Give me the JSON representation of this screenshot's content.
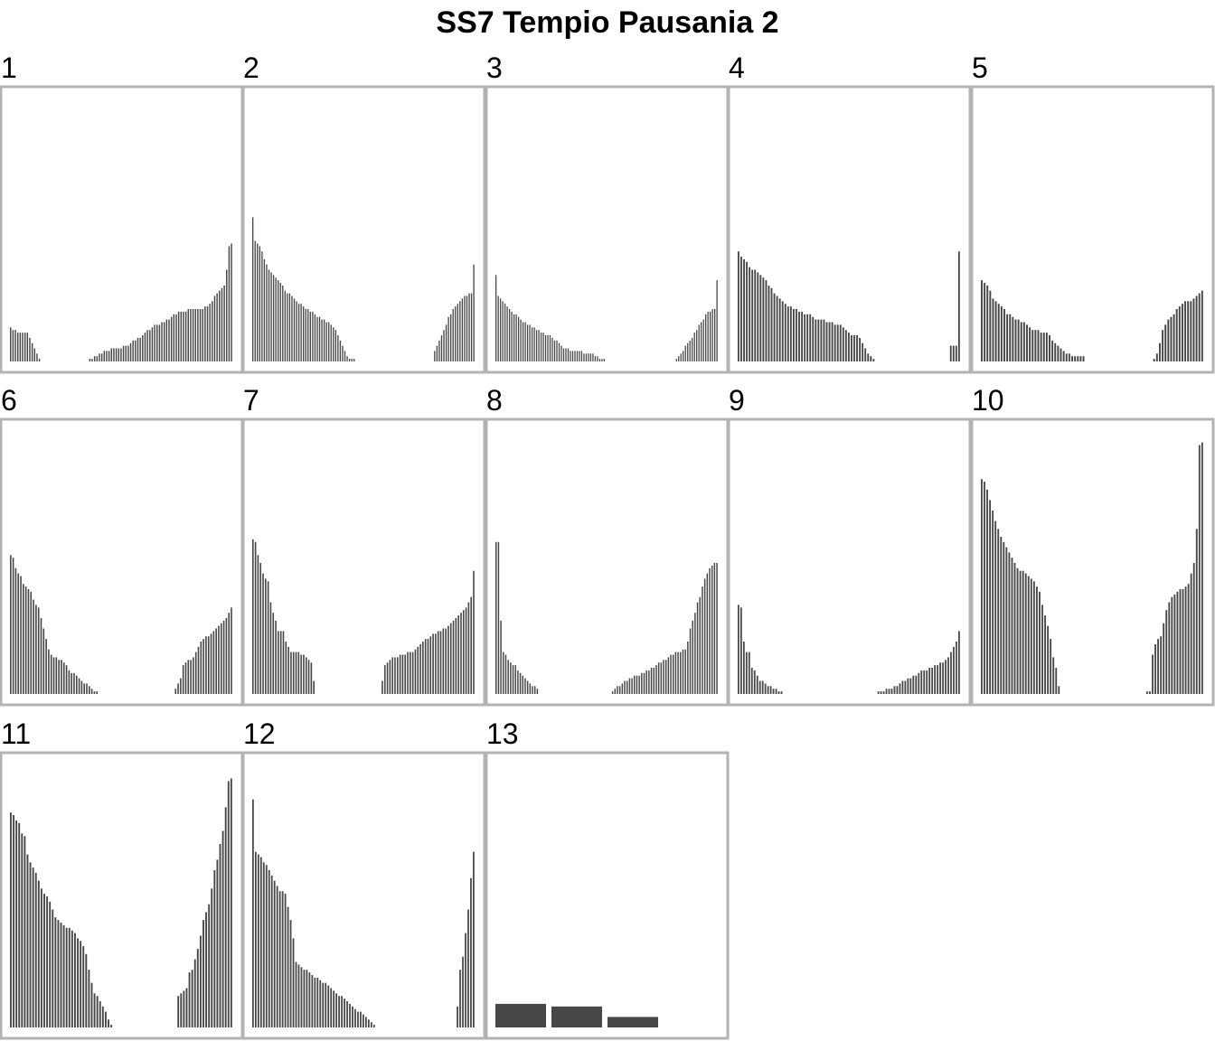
{
  "title": "SS7 Tempio Pausania 2",
  "colors": {
    "bar": "#474747",
    "frame": "#b3b3b3",
    "background": "#ffffff"
  },
  "chart_data": [
    {
      "type": "bar",
      "label": "1",
      "ylim": [
        0,
        1
      ],
      "values": [
        0.13,
        0.12,
        0.12,
        0.11,
        0.11,
        0.11,
        0.11,
        0.11,
        0.09,
        0.07,
        0.05,
        0.03,
        0.01,
        0.0,
        0.0,
        0.0,
        0.0,
        0.0,
        0.0,
        0.0,
        0.0,
        0.0,
        0.0,
        0.0,
        0.0,
        0.0,
        0.0,
        0.0,
        0.0,
        0.0,
        0.0,
        0.0,
        0.0,
        0.01,
        0.01,
        0.02,
        0.02,
        0.03,
        0.03,
        0.04,
        0.04,
        0.04,
        0.05,
        0.05,
        0.05,
        0.05,
        0.05,
        0.06,
        0.06,
        0.06,
        0.07,
        0.08,
        0.08,
        0.09,
        0.09,
        0.1,
        0.11,
        0.12,
        0.12,
        0.13,
        0.14,
        0.14,
        0.14,
        0.15,
        0.15,
        0.16,
        0.16,
        0.17,
        0.18,
        0.18,
        0.19,
        0.19,
        0.19,
        0.19,
        0.2,
        0.2,
        0.2,
        0.2,
        0.2,
        0.2,
        0.2,
        0.21,
        0.21,
        0.22,
        0.23,
        0.25,
        0.26,
        0.27,
        0.28,
        0.29,
        0.35,
        0.44,
        0.45
      ]
    },
    {
      "type": "bar",
      "label": "2",
      "ylim": [
        0,
        1
      ],
      "values": [
        0.55,
        0.46,
        0.45,
        0.44,
        0.42,
        0.39,
        0.37,
        0.35,
        0.34,
        0.33,
        0.32,
        0.31,
        0.3,
        0.29,
        0.27,
        0.26,
        0.26,
        0.25,
        0.24,
        0.23,
        0.22,
        0.22,
        0.21,
        0.2,
        0.2,
        0.19,
        0.19,
        0.18,
        0.17,
        0.17,
        0.16,
        0.16,
        0.15,
        0.15,
        0.14,
        0.13,
        0.12,
        0.1,
        0.08,
        0.06,
        0.04,
        0.02,
        0.01,
        0.01,
        0.01,
        0.0,
        0.0,
        0.0,
        0.0,
        0.0,
        0.0,
        0.0,
        0.0,
        0.0,
        0.0,
        0.0,
        0.0,
        0.0,
        0.0,
        0.0,
        0.0,
        0.0,
        0.0,
        0.0,
        0.0,
        0.0,
        0.0,
        0.0,
        0.0,
        0.0,
        0.0,
        0.0,
        0.0,
        0.0,
        0.0,
        0.0,
        0.0,
        0.0,
        0.0,
        0.04,
        0.06,
        0.08,
        0.1,
        0.12,
        0.14,
        0.17,
        0.18,
        0.2,
        0.21,
        0.22,
        0.23,
        0.24,
        0.25,
        0.25,
        0.26,
        0.26,
        0.37
      ]
    },
    {
      "type": "bar",
      "label": "3",
      "ylim": [
        0,
        1
      ],
      "values": [
        0.33,
        0.25,
        0.24,
        0.23,
        0.22,
        0.21,
        0.2,
        0.19,
        0.18,
        0.18,
        0.17,
        0.16,
        0.15,
        0.15,
        0.14,
        0.14,
        0.13,
        0.13,
        0.12,
        0.12,
        0.11,
        0.11,
        0.1,
        0.1,
        0.1,
        0.09,
        0.08,
        0.08,
        0.07,
        0.06,
        0.05,
        0.05,
        0.05,
        0.04,
        0.04,
        0.04,
        0.04,
        0.04,
        0.04,
        0.03,
        0.03,
        0.03,
        0.03,
        0.03,
        0.02,
        0.02,
        0.01,
        0.01,
        0.01,
        0.0,
        0.0,
        0.0,
        0.0,
        0.0,
        0.0,
        0.0,
        0.0,
        0.0,
        0.0,
        0.0,
        0.0,
        0.0,
        0.0,
        0.0,
        0.0,
        0.0,
        0.0,
        0.0,
        0.0,
        0.0,
        0.0,
        0.0,
        0.0,
        0.0,
        0.0,
        0.0,
        0.0,
        0.0,
        0.0,
        0.0,
        0.01,
        0.02,
        0.03,
        0.04,
        0.06,
        0.07,
        0.08,
        0.09,
        0.11,
        0.12,
        0.14,
        0.15,
        0.16,
        0.18,
        0.19,
        0.19,
        0.2,
        0.2,
        0.31
      ]
    },
    {
      "type": "bar",
      "label": "4",
      "ylim": [
        0,
        1
      ],
      "values": [
        0.42,
        0.4,
        0.39,
        0.38,
        0.36,
        0.35,
        0.35,
        0.34,
        0.33,
        0.32,
        0.31,
        0.29,
        0.28,
        0.26,
        0.25,
        0.24,
        0.23,
        0.22,
        0.21,
        0.21,
        0.2,
        0.2,
        0.19,
        0.19,
        0.18,
        0.18,
        0.18,
        0.17,
        0.16,
        0.16,
        0.16,
        0.16,
        0.15,
        0.15,
        0.15,
        0.14,
        0.14,
        0.14,
        0.13,
        0.12,
        0.11,
        0.1,
        0.1,
        0.1,
        0.09,
        0.07,
        0.05,
        0.03,
        0.02,
        0.01,
        0.0,
        0.0,
        0.0,
        0.0,
        0.0,
        0.0,
        0.0,
        0.0,
        0.0,
        0.0,
        0.0,
        0.0,
        0.0,
        0.0,
        0.0,
        0.0,
        0.0,
        0.0,
        0.0,
        0.0,
        0.0,
        0.0,
        0.0,
        0.0,
        0.0,
        0.0,
        0.0,
        0.06,
        0.06,
        0.06,
        0.42
      ]
    },
    {
      "type": "bar",
      "label": "5",
      "ylim": [
        0,
        1
      ],
      "values": [
        0.31,
        0.3,
        0.29,
        0.27,
        0.24,
        0.23,
        0.22,
        0.21,
        0.2,
        0.18,
        0.18,
        0.17,
        0.16,
        0.16,
        0.15,
        0.15,
        0.14,
        0.13,
        0.12,
        0.12,
        0.12,
        0.11,
        0.11,
        0.11,
        0.1,
        0.08,
        0.07,
        0.06,
        0.05,
        0.04,
        0.03,
        0.03,
        0.02,
        0.02,
        0.02,
        0.02,
        0.02,
        0.0,
        0.0,
        0.0,
        0.0,
        0.0,
        0.0,
        0.0,
        0.0,
        0.0,
        0.0,
        0.0,
        0.0,
        0.0,
        0.0,
        0.0,
        0.0,
        0.0,
        0.0,
        0.0,
        0.0,
        0.0,
        0.0,
        0.0,
        0.0,
        0.01,
        0.03,
        0.07,
        0.12,
        0.14,
        0.16,
        0.17,
        0.18,
        0.2,
        0.21,
        0.22,
        0.23,
        0.23,
        0.23,
        0.24,
        0.25,
        0.26,
        0.27
      ]
    },
    {
      "type": "bar",
      "label": "6",
      "ylim": [
        0,
        1
      ],
      "values": [
        0.53,
        0.52,
        0.48,
        0.46,
        0.45,
        0.42,
        0.41,
        0.4,
        0.39,
        0.36,
        0.34,
        0.33,
        0.29,
        0.25,
        0.21,
        0.17,
        0.15,
        0.14,
        0.14,
        0.13,
        0.13,
        0.12,
        0.11,
        0.09,
        0.08,
        0.08,
        0.07,
        0.06,
        0.05,
        0.04,
        0.04,
        0.03,
        0.02,
        0.01,
        0.01,
        0.0,
        0.0,
        0.0,
        0.0,
        0.0,
        0.0,
        0.0,
        0.0,
        0.0,
        0.0,
        0.0,
        0.0,
        0.0,
        0.0,
        0.0,
        0.0,
        0.0,
        0.0,
        0.0,
        0.0,
        0.0,
        0.0,
        0.0,
        0.0,
        0.0,
        0.0,
        0.0,
        0.0,
        0.0,
        0.0,
        0.02,
        0.04,
        0.06,
        0.11,
        0.12,
        0.13,
        0.13,
        0.14,
        0.16,
        0.18,
        0.2,
        0.21,
        0.22,
        0.22,
        0.23,
        0.24,
        0.25,
        0.26,
        0.27,
        0.28,
        0.29,
        0.31,
        0.33
      ]
    },
    {
      "type": "bar",
      "label": "7",
      "ylim": [
        0,
        1
      ],
      "values": [
        0.59,
        0.58,
        0.53,
        0.5,
        0.46,
        0.44,
        0.43,
        0.35,
        0.31,
        0.28,
        0.24,
        0.24,
        0.24,
        0.2,
        0.18,
        0.16,
        0.16,
        0.16,
        0.16,
        0.15,
        0.15,
        0.14,
        0.13,
        0.12,
        0.05,
        0.0,
        0.0,
        0.0,
        0.0,
        0.0,
        0.0,
        0.0,
        0.0,
        0.0,
        0.0,
        0.0,
        0.0,
        0.0,
        0.0,
        0.0,
        0.0,
        0.0,
        0.0,
        0.0,
        0.0,
        0.0,
        0.0,
        0.0,
        0.0,
        0.0,
        0.0,
        0.05,
        0.11,
        0.12,
        0.13,
        0.14,
        0.14,
        0.14,
        0.15,
        0.15,
        0.15,
        0.16,
        0.16,
        0.16,
        0.17,
        0.18,
        0.19,
        0.2,
        0.21,
        0.21,
        0.22,
        0.23,
        0.23,
        0.24,
        0.24,
        0.25,
        0.25,
        0.26,
        0.27,
        0.28,
        0.29,
        0.3,
        0.31,
        0.32,
        0.33,
        0.35,
        0.37,
        0.47
      ]
    },
    {
      "type": "bar",
      "label": "8",
      "ylim": [
        0,
        1
      ],
      "values": [
        0.58,
        0.58,
        0.28,
        0.16,
        0.15,
        0.13,
        0.12,
        0.11,
        0.11,
        0.09,
        0.08,
        0.07,
        0.06,
        0.05,
        0.04,
        0.03,
        0.03,
        0.02,
        0.0,
        0.0,
        0.0,
        0.0,
        0.0,
        0.0,
        0.0,
        0.0,
        0.0,
        0.0,
        0.0,
        0.0,
        0.0,
        0.0,
        0.0,
        0.0,
        0.0,
        0.0,
        0.0,
        0.0,
        0.0,
        0.0,
        0.0,
        0.0,
        0.0,
        0.0,
        0.0,
        0.0,
        0.0,
        0.0,
        0.01,
        0.02,
        0.03,
        0.03,
        0.04,
        0.05,
        0.05,
        0.06,
        0.06,
        0.07,
        0.07,
        0.07,
        0.08,
        0.08,
        0.09,
        0.09,
        0.1,
        0.1,
        0.11,
        0.12,
        0.12,
        0.13,
        0.13,
        0.14,
        0.15,
        0.15,
        0.16,
        0.16,
        0.16,
        0.17,
        0.17,
        0.2,
        0.25,
        0.28,
        0.31,
        0.35,
        0.37,
        0.41,
        0.44,
        0.46,
        0.48,
        0.49,
        0.5,
        0.5
      ]
    },
    {
      "type": "bar",
      "label": "9",
      "ylim": [
        0,
        1
      ],
      "values": [
        0.34,
        0.33,
        0.2,
        0.16,
        0.16,
        0.1,
        0.09,
        0.07,
        0.05,
        0.05,
        0.04,
        0.03,
        0.03,
        0.02,
        0.02,
        0.01,
        0.01,
        0.0,
        0.0,
        0.0,
        0.0,
        0.0,
        0.0,
        0.0,
        0.0,
        0.0,
        0.0,
        0.0,
        0.0,
        0.0,
        0.0,
        0.0,
        0.0,
        0.0,
        0.0,
        0.0,
        0.0,
        0.0,
        0.0,
        0.0,
        0.0,
        0.0,
        0.0,
        0.0,
        0.0,
        0.0,
        0.0,
        0.0,
        0.0,
        0.0,
        0.0,
        0.0,
        0.01,
        0.01,
        0.01,
        0.02,
        0.02,
        0.02,
        0.03,
        0.03,
        0.04,
        0.05,
        0.05,
        0.06,
        0.06,
        0.07,
        0.07,
        0.08,
        0.09,
        0.09,
        0.09,
        0.1,
        0.1,
        0.11,
        0.11,
        0.12,
        0.12,
        0.13,
        0.14,
        0.16,
        0.18,
        0.2,
        0.24
      ]
    },
    {
      "type": "bar",
      "label": "10",
      "ylim": [
        0,
        1
      ],
      "values": [
        0.82,
        0.81,
        0.78,
        0.74,
        0.7,
        0.66,
        0.63,
        0.6,
        0.58,
        0.56,
        0.54,
        0.52,
        0.5,
        0.48,
        0.47,
        0.47,
        0.46,
        0.45,
        0.44,
        0.43,
        0.41,
        0.39,
        0.34,
        0.3,
        0.26,
        0.21,
        0.14,
        0.1,
        0.03,
        0.0,
        0.0,
        0.0,
        0.0,
        0.0,
        0.0,
        0.0,
        0.0,
        0.0,
        0.0,
        0.0,
        0.0,
        0.0,
        0.0,
        0.0,
        0.0,
        0.0,
        0.0,
        0.0,
        0.0,
        0.0,
        0.0,
        0.0,
        0.0,
        0.0,
        0.0,
        0.0,
        0.0,
        0.0,
        0.0,
        0.0,
        0.01,
        0.01,
        0.15,
        0.19,
        0.21,
        0.22,
        0.27,
        0.32,
        0.35,
        0.37,
        0.38,
        0.39,
        0.4,
        0.4,
        0.41,
        0.42,
        0.46,
        0.5,
        0.63,
        0.95,
        0.96
      ]
    },
    {
      "type": "bar",
      "label": "11",
      "ylim": [
        0,
        1
      ],
      "values": [
        0.82,
        0.81,
        0.79,
        0.78,
        0.74,
        0.73,
        0.66,
        0.63,
        0.61,
        0.59,
        0.56,
        0.53,
        0.51,
        0.5,
        0.48,
        0.45,
        0.42,
        0.41,
        0.4,
        0.39,
        0.38,
        0.38,
        0.37,
        0.36,
        0.34,
        0.33,
        0.31,
        0.28,
        0.22,
        0.17,
        0.13,
        0.12,
        0.1,
        0.08,
        0.06,
        0.03,
        0.01,
        0.0,
        0.0,
        0.0,
        0.0,
        0.0,
        0.0,
        0.0,
        0.0,
        0.0,
        0.0,
        0.0,
        0.0,
        0.0,
        0.0,
        0.0,
        0.0,
        0.0,
        0.0,
        0.0,
        0.0,
        0.0,
        0.0,
        0.0,
        0.12,
        0.13,
        0.14,
        0.15,
        0.21,
        0.22,
        0.26,
        0.3,
        0.35,
        0.41,
        0.44,
        0.47,
        0.53,
        0.6,
        0.64,
        0.7,
        0.75,
        0.84,
        0.94,
        0.95
      ]
    },
    {
      "type": "bar",
      "label": "12",
      "ylim": [
        0,
        1
      ],
      "values": [
        0.87,
        0.67,
        0.66,
        0.65,
        0.63,
        0.62,
        0.6,
        0.58,
        0.56,
        0.54,
        0.52,
        0.52,
        0.51,
        0.46,
        0.41,
        0.34,
        0.25,
        0.24,
        0.23,
        0.22,
        0.22,
        0.21,
        0.2,
        0.19,
        0.19,
        0.18,
        0.17,
        0.17,
        0.16,
        0.15,
        0.14,
        0.13,
        0.12,
        0.12,
        0.11,
        0.1,
        0.09,
        0.08,
        0.07,
        0.06,
        0.06,
        0.05,
        0.04,
        0.03,
        0.02,
        0.01,
        0.0,
        0.0,
        0.0,
        0.0,
        0.0,
        0.0,
        0.0,
        0.0,
        0.0,
        0.0,
        0.0,
        0.0,
        0.0,
        0.0,
        0.0,
        0.0,
        0.0,
        0.0,
        0.0,
        0.0,
        0.0,
        0.0,
        0.0,
        0.0,
        0.0,
        0.0,
        0.0,
        0.0,
        0.0,
        0.0,
        0.08,
        0.22,
        0.27,
        0.36,
        0.45,
        0.57,
        0.67
      ]
    },
    {
      "type": "bar",
      "label": "13",
      "ylim": [
        0,
        1
      ],
      "values": [
        0.09,
        0.08,
        0.04
      ]
    }
  ]
}
